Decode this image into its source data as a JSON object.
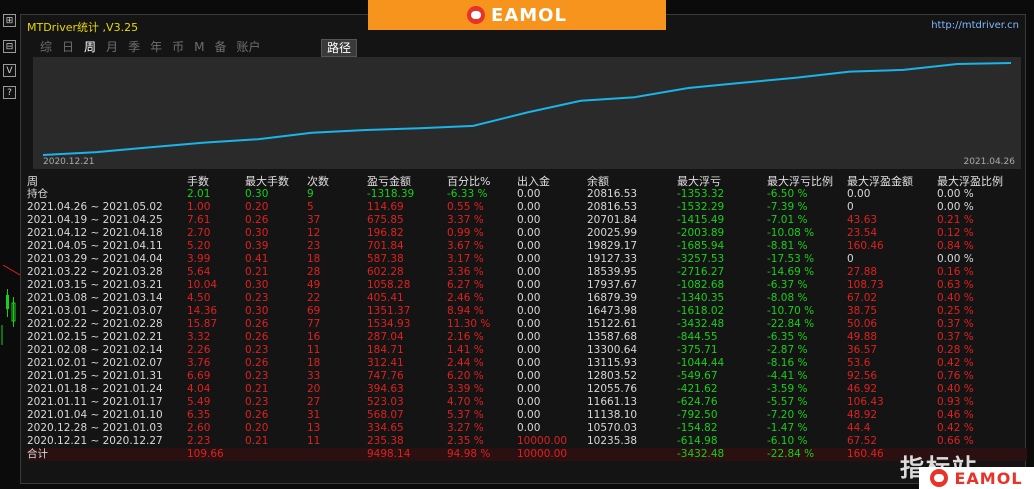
{
  "toolbar": {
    "buttons": [
      "⊞",
      "⊟",
      "V",
      "?"
    ]
  },
  "window": {
    "title": "MTDriver统计 ,V3.25",
    "url": "http://mtdriver.cn"
  },
  "banner": {
    "brand": "EAMOL"
  },
  "tabs": [
    {
      "label": "综",
      "active": false
    },
    {
      "label": "日",
      "active": false
    },
    {
      "label": "周",
      "active": true
    },
    {
      "label": "月",
      "active": false
    },
    {
      "label": "季",
      "active": false
    },
    {
      "label": "年",
      "active": false
    },
    {
      "label": "币",
      "active": false
    },
    {
      "label": "M",
      "active": false
    },
    {
      "label": "备",
      "active": false
    },
    {
      "label": "账户",
      "active": false
    }
  ],
  "path_button": "路径",
  "chart_data": {
    "type": "line",
    "series": [
      {
        "values": [
          10235.38,
          10570.03,
          11138.1,
          11661.13,
          12055.76,
          12803.52,
          13115.93,
          13300.64,
          13587.68,
          15122.61,
          16473.98,
          16879.39,
          17937.67,
          18539.95,
          19127.33,
          19829.17,
          20025.99,
          20701.84,
          20816.53
        ]
      }
    ],
    "x_start_label": "2020.12.21",
    "x_end_label": "2021.04.26",
    "line_color": "#19b4e8"
  },
  "table": {
    "headers": [
      "周",
      "手数",
      "最大手数",
      "次数",
      "盈亏金额",
      "百分比%",
      "出入金",
      "余额",
      "最大浮亏",
      "最大浮亏比例",
      "最大浮盈金额",
      "最大浮盈比例"
    ],
    "holding": [
      "持仓",
      "2.01",
      "0.30",
      "9",
      "-1318.39",
      "-6.33 %",
      "0.00",
      "20816.53",
      "-1353.32",
      "-6.50 %",
      "0.00",
      "0.00 %"
    ],
    "rows": [
      [
        "2021.04.26 ~ 2021.05.02",
        "1.00",
        "0.20",
        "5",
        "114.69",
        "0.55 %",
        "0.00",
        "20816.53",
        "-1532.29",
        "-7.39 %",
        "0",
        "0.00 %"
      ],
      [
        "2021.04.19 ~ 2021.04.25",
        "7.61",
        "0.26",
        "37",
        "675.85",
        "3.37 %",
        "0.00",
        "20701.84",
        "-1415.49",
        "-7.01 %",
        "43.63",
        "0.21 %"
      ],
      [
        "2021.04.12 ~ 2021.04.18",
        "2.70",
        "0.30",
        "12",
        "196.82",
        "0.99 %",
        "0.00",
        "20025.99",
        "-2003.89",
        "-10.08 %",
        "23.54",
        "0.12 %"
      ],
      [
        "2021.04.05 ~ 2021.04.11",
        "5.20",
        "0.39",
        "23",
        "701.84",
        "3.67 %",
        "0.00",
        "19829.17",
        "-1685.94",
        "-8.81 %",
        "160.46",
        "0.84 %"
      ],
      [
        "2021.03.29 ~ 2021.04.04",
        "3.99",
        "0.41",
        "18",
        "587.38",
        "3.17 %",
        "0.00",
        "19127.33",
        "-3257.53",
        "-17.53 %",
        "0",
        "0.00 %"
      ],
      [
        "2021.03.22 ~ 2021.03.28",
        "5.64",
        "0.21",
        "28",
        "602.28",
        "3.36 %",
        "0.00",
        "18539.95",
        "-2716.27",
        "-14.69 %",
        "27.88",
        "0.16 %"
      ],
      [
        "2021.03.15 ~ 2021.03.21",
        "10.04",
        "0.30",
        "49",
        "1058.28",
        "6.27 %",
        "0.00",
        "17937.67",
        "-1082.68",
        "-6.37 %",
        "108.73",
        "0.63 %"
      ],
      [
        "2021.03.08 ~ 2021.03.14",
        "4.50",
        "0.23",
        "22",
        "405.41",
        "2.46 %",
        "0.00",
        "16879.39",
        "-1340.35",
        "-8.08 %",
        "67.02",
        "0.40 %"
      ],
      [
        "2021.03.01 ~ 2021.03.07",
        "14.36",
        "0.30",
        "69",
        "1351.37",
        "8.94 %",
        "0.00",
        "16473.98",
        "-1618.02",
        "-10.70 %",
        "38.75",
        "0.25 %"
      ],
      [
        "2021.02.22 ~ 2021.02.28",
        "15.87",
        "0.26",
        "77",
        "1534.93",
        "11.30 %",
        "0.00",
        "15122.61",
        "-3432.48",
        "-22.84 %",
        "50.06",
        "0.37 %"
      ],
      [
        "2021.02.15 ~ 2021.02.21",
        "3.32",
        "0.26",
        "16",
        "287.04",
        "2.16 %",
        "0.00",
        "13587.68",
        "-844.55",
        "-6.35 %",
        "49.88",
        "0.37 %"
      ],
      [
        "2021.02.08 ~ 2021.02.14",
        "2.26",
        "0.23",
        "11",
        "184.71",
        "1.41 %",
        "0.00",
        "13300.64",
        "-375.71",
        "-2.87 %",
        "36.57",
        "0.28 %"
      ],
      [
        "2021.02.01 ~ 2021.02.07",
        "3.76",
        "0.26",
        "18",
        "312.41",
        "2.44 %",
        "0.00",
        "13115.93",
        "-1044.44",
        "-8.16 %",
        "53.6",
        "0.42 %"
      ],
      [
        "2021.01.25 ~ 2021.01.31",
        "6.69",
        "0.23",
        "33",
        "747.76",
        "6.20 %",
        "0.00",
        "12803.52",
        "-549.67",
        "-4.41 %",
        "92.56",
        "0.76 %"
      ],
      [
        "2021.01.18 ~ 2021.01.24",
        "4.04",
        "0.21",
        "20",
        "394.63",
        "3.39 %",
        "0.00",
        "12055.76",
        "-421.62",
        "-3.59 %",
        "46.92",
        "0.40 %"
      ],
      [
        "2021.01.11 ~ 2021.01.17",
        "5.49",
        "0.23",
        "27",
        "523.03",
        "4.70 %",
        "0.00",
        "11661.13",
        "-624.76",
        "-5.57 %",
        "106.43",
        "0.93 %"
      ],
      [
        "2021.01.04 ~ 2021.01.10",
        "6.35",
        "0.26",
        "31",
        "568.07",
        "5.37 %",
        "0.00",
        "11138.10",
        "-792.50",
        "-7.20 %",
        "48.92",
        "0.46 %"
      ],
      [
        "2020.12.28 ~ 2021.01.03",
        "2.60",
        "0.20",
        "13",
        "334.65",
        "3.27 %",
        "0.00",
        "10570.03",
        "-154.82",
        "-1.47 %",
        "44.4",
        "0.42 %"
      ],
      [
        "2020.12.21 ~ 2020.12.27",
        "2.23",
        "0.21",
        "11",
        "235.38",
        "2.35 %",
        "10000.00",
        "10235.38",
        "-614.98",
        "-6.10 %",
        "67.52",
        "0.66 %"
      ]
    ],
    "total": [
      "合计",
      "109.66",
      "",
      "",
      "9498.14",
      "94.98 %",
      "10000.00",
      "",
      "-3432.48",
      "-22.84 %",
      "160.46",
      ""
    ]
  },
  "watermark": {
    "text": "指标站",
    "brand": "EAMOL"
  }
}
